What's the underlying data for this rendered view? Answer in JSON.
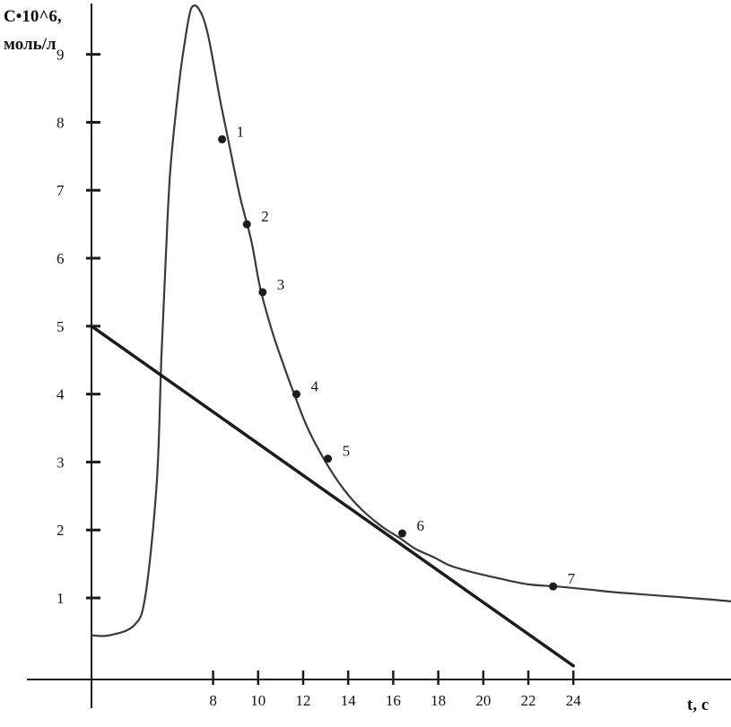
{
  "colors": {
    "ink": "#1c1c1c",
    "curve": "#3a3a3a",
    "background": "#ffffff"
  },
  "chart_data": {
    "type": "line",
    "ylabel_line1": "C•10^6,",
    "ylabel_line2": "моль/л",
    "xlabel": "t, c",
    "xlim": [
      2.6,
      31
    ],
    "ylim": [
      -0.2,
      9.8
    ],
    "x_ticks": [
      8,
      10,
      12,
      14,
      16,
      18,
      20,
      22,
      24
    ],
    "x_tick_labels": [
      "8",
      "10",
      "12",
      "14",
      "16",
      "18",
      "20",
      "22",
      "24"
    ],
    "y_ticks": [
      1,
      2,
      3,
      4,
      5,
      6,
      7,
      8,
      9
    ],
    "y_tick_labels": [
      "1",
      "2",
      "3",
      "4",
      "5",
      "6",
      "7",
      "8",
      "9"
    ],
    "grid": false,
    "series": [
      {
        "x": [
          2.6,
          3.4,
          4.5,
          5.0,
          5.5,
          5.7,
          5.9,
          6.1,
          6.5,
          6.8,
          7.0,
          7.2,
          7.4,
          7.6,
          7.8,
          8.0,
          8.3,
          8.7,
          9.2,
          9.7,
          10.1,
          10.6,
          11.0,
          11.6,
          12.2,
          13.0,
          13.8,
          14.6,
          15.5,
          16.3,
          17.0,
          17.8,
          18.5,
          19.5,
          20.8,
          22.0,
          23.2,
          24.5,
          26.0,
          28.0,
          30.0,
          31.0
        ],
        "y": [
          0.45,
          0.45,
          0.6,
          1.05,
          2.7,
          4.5,
          6.0,
          7.3,
          8.6,
          9.3,
          9.65,
          9.72,
          9.65,
          9.5,
          9.25,
          8.9,
          8.35,
          7.7,
          6.9,
          6.25,
          5.55,
          4.95,
          4.55,
          4.0,
          3.5,
          3.0,
          2.6,
          2.3,
          2.05,
          1.88,
          1.72,
          1.6,
          1.48,
          1.38,
          1.28,
          1.2,
          1.17,
          1.13,
          1.08,
          1.03,
          0.98,
          0.95
        ]
      },
      {
        "x": [
          2.6,
          24.0
        ],
        "y": [
          5.0,
          0.0
        ]
      }
    ],
    "marked_points": [
      {
        "label": "1",
        "x": 8.4,
        "y": 7.75
      },
      {
        "label": "2",
        "x": 9.5,
        "y": 6.5
      },
      {
        "label": "3",
        "x": 10.2,
        "y": 5.5
      },
      {
        "label": "4",
        "x": 11.7,
        "y": 4.0
      },
      {
        "label": "5",
        "x": 13.1,
        "y": 3.05
      },
      {
        "label": "6",
        "x": 16.4,
        "y": 1.95
      },
      {
        "label": "7",
        "x": 23.1,
        "y": 1.17
      }
    ]
  }
}
